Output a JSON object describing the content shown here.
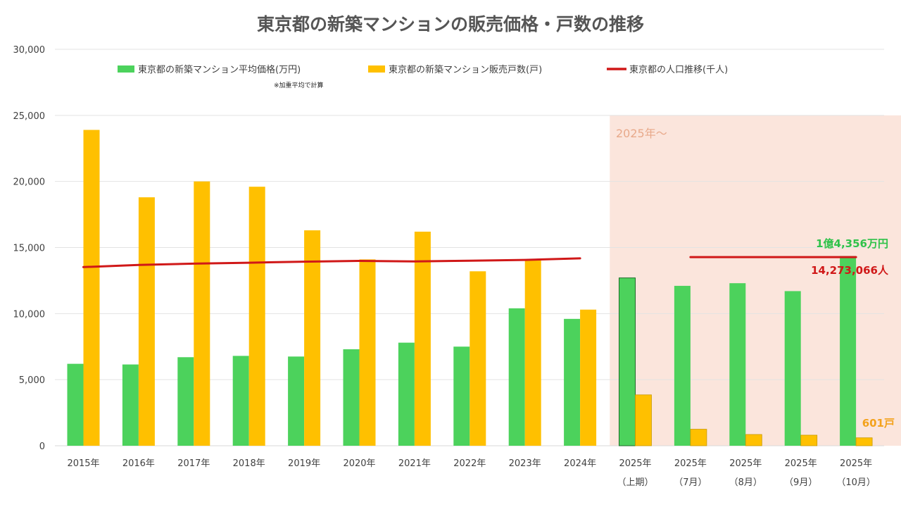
{
  "chart_data": {
    "type": "bar",
    "title": "東京都の新築マンションの販売価格・戸数の推移",
    "ylim": [
      0,
      30000
    ],
    "yticks": [
      "0",
      "5,000",
      "10,000",
      "15,000",
      "20,000",
      "25,000",
      "30,000"
    ],
    "categories": [
      {
        "line1": "2015年",
        "line2": ""
      },
      {
        "line1": "2016年",
        "line2": ""
      },
      {
        "line1": "2017年",
        "line2": ""
      },
      {
        "line1": "2018年",
        "line2": ""
      },
      {
        "line1": "2019年",
        "line2": ""
      },
      {
        "line1": "2020年",
        "line2": ""
      },
      {
        "line1": "2021年",
        "line2": ""
      },
      {
        "line1": "2022年",
        "line2": ""
      },
      {
        "line1": "2023年",
        "line2": ""
      },
      {
        "line1": "2024年",
        "line2": ""
      },
      {
        "line1": "2025年",
        "line2": "（上期）"
      },
      {
        "line1": "2025年",
        "line2": "（7月）"
      },
      {
        "line1": "2025年",
        "line2": "（8月）"
      },
      {
        "line1": "2025年",
        "line2": "（9月）"
      },
      {
        "line1": "2025年",
        "line2": "（10月）"
      }
    ],
    "series": [
      {
        "name": "東京都の新築マンション平均価格(万円)",
        "type": "bar",
        "color": "#4cd25c",
        "values": [
          6200,
          6150,
          6700,
          6800,
          6750,
          7300,
          7800,
          7500,
          10400,
          9600,
          12700,
          12100,
          12300,
          11700,
          14356
        ]
      },
      {
        "name": "東京都の新築マンション販売戸数(戸)",
        "type": "bar",
        "color": "#ffc000",
        "values": [
          23900,
          18800,
          20000,
          19600,
          16300,
          14100,
          16200,
          13200,
          14100,
          10300,
          3850,
          1250,
          850,
          800,
          601
        ]
      },
      {
        "name": "東京都の人口推移(千人)",
        "type": "line",
        "color": "#d01818",
        "values": [
          13520,
          13680,
          13780,
          13850,
          13930,
          13990,
          13950,
          14000,
          14060,
          14180,
          null,
          14273,
          14273,
          14273,
          14273
        ]
      }
    ],
    "legend_note": "※加重平均で計算",
    "region": {
      "label": "2025年～",
      "color": "#fbe5dc",
      "start_index": 10
    },
    "annotations": {
      "price": "1億4,356万円",
      "population": "14,273,066人",
      "units": "601戸"
    }
  }
}
